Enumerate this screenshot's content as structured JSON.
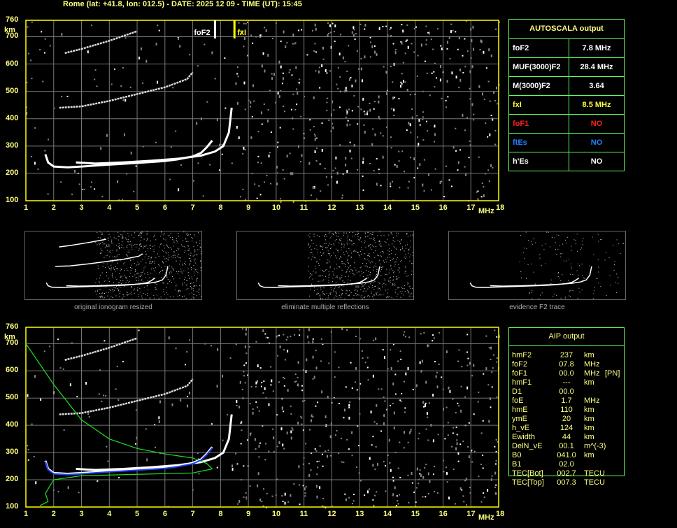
{
  "header": {
    "title": "Rome (lat: +41.8, lon: 012.5) - DATE: 2025 12 09 - TIME (UT): 15:45"
  },
  "plot": {
    "y_unit": "km",
    "x_unit": "MHz",
    "foF2_marker": "foF2",
    "fxI_marker": "fxI",
    "y_ticks": [
      "760",
      "700",
      "600",
      "500",
      "400",
      "300",
      "200",
      "100"
    ],
    "x_ticks": [
      "1",
      "2",
      "3",
      "4",
      "5",
      "6",
      "7",
      "8",
      "9",
      "10",
      "11",
      "12",
      "13",
      "14",
      "15",
      "16",
      "17",
      "18"
    ]
  },
  "chart_data": {
    "type": "scatter",
    "xlabel": "MHz",
    "ylabel": "km",
    "xlim": [
      1,
      18
    ],
    "ylim": [
      100,
      760
    ],
    "grid": true,
    "markers": {
      "foF2": 7.8,
      "fxI": 8.5
    },
    "series": [
      {
        "x": [
          1.7,
          1.8,
          2,
          2.5,
          3,
          4,
          5,
          6,
          6.5,
          7,
          7.3,
          7.5,
          7.7
        ],
        "y": [
          270,
          240,
          225,
          222,
          225,
          232,
          238,
          245,
          252,
          262,
          275,
          295,
          320
        ]
      },
      {
        "x": [
          2.8,
          3.5,
          4.5,
          5.5,
          6.5,
          7.3,
          7.8,
          8.1,
          8.3,
          8.4
        ],
        "y": [
          240,
          236,
          240,
          246,
          254,
          265,
          280,
          300,
          350,
          440
        ]
      },
      {
        "x": [
          2.2,
          3,
          4,
          5,
          6,
          6.8,
          7
        ],
        "y": [
          440,
          445,
          465,
          490,
          515,
          545,
          570
        ]
      },
      {
        "x": [
          2.4,
          3,
          4,
          5
        ],
        "y": [
          640,
          655,
          685,
          720
        ]
      }
    ],
    "profile_green": {
      "x": [
        1,
        2,
        3,
        4,
        5,
        6,
        7,
        7.5,
        7.7,
        7,
        5,
        3,
        2,
        1.7,
        1.8,
        1.5
      ],
      "y": [
        700,
        550,
        420,
        350,
        315,
        295,
        280,
        260,
        240,
        225,
        220,
        215,
        200,
        150,
        120,
        105
      ]
    }
  },
  "autoscala": {
    "title": "AUTOSCALA output",
    "rows": [
      {
        "k": "foF2",
        "v": "7.8 MHz",
        "kc": "#ffffff",
        "vc": "#ffffff"
      },
      {
        "k": "MUF(3000)F2",
        "v": "28.4 MHz",
        "kc": "#ffffff",
        "vc": "#ffffff"
      },
      {
        "k": "M(3000)F2",
        "v": "3.64",
        "kc": "#ffffff",
        "vc": "#ffffff"
      },
      {
        "k": "fxI",
        "v": "8.5 MHz",
        "kc": "#ffff40",
        "vc": "#ffff40"
      },
      {
        "k": "foF1",
        "v": "NO",
        "kc": "#ff2020",
        "vc": "#ff2020"
      },
      {
        "k": "ftEs",
        "v": "NO",
        "kc": "#2080ff",
        "vc": "#2080ff"
      },
      {
        "k": "h'Es",
        "v": "NO",
        "kc": "#ffffff",
        "vc": "#ffffff"
      }
    ]
  },
  "thumbnails": [
    {
      "caption": "original ionogram resized"
    },
    {
      "caption": "eliminate multiple reflections"
    },
    {
      "caption": "evidence F2 trace"
    }
  ],
  "aip": {
    "title": "AIP output",
    "rows": [
      [
        "hmF2",
        "237",
        "km",
        ""
      ],
      [
        "foF2",
        "07.8",
        "MHz",
        ""
      ],
      [
        "foF1",
        "00.0",
        "MHz",
        "[PN]"
      ],
      [
        "hmF1",
        "---",
        "km",
        ""
      ],
      [
        "D1",
        "00.0",
        "",
        ""
      ],
      [
        "foE",
        "1.7",
        "MHz",
        ""
      ],
      [
        "hmE",
        "110",
        "km",
        ""
      ],
      [
        "ymE",
        "20",
        "km",
        ""
      ],
      [
        "h_vE",
        "124",
        "km",
        ""
      ],
      [
        "Ewidth",
        "44",
        "km",
        ""
      ],
      [
        "DelN_vE",
        "00.1",
        "m^(-3)",
        ""
      ],
      [
        "B0",
        "041.0",
        "km",
        ""
      ],
      [
        "B1",
        "02.0",
        "",
        ""
      ],
      [
        "TEC[Bot]",
        "002.7",
        "TECU",
        ""
      ],
      [
        "TEC[Top]",
        "007.3",
        "TECU",
        ""
      ]
    ]
  }
}
